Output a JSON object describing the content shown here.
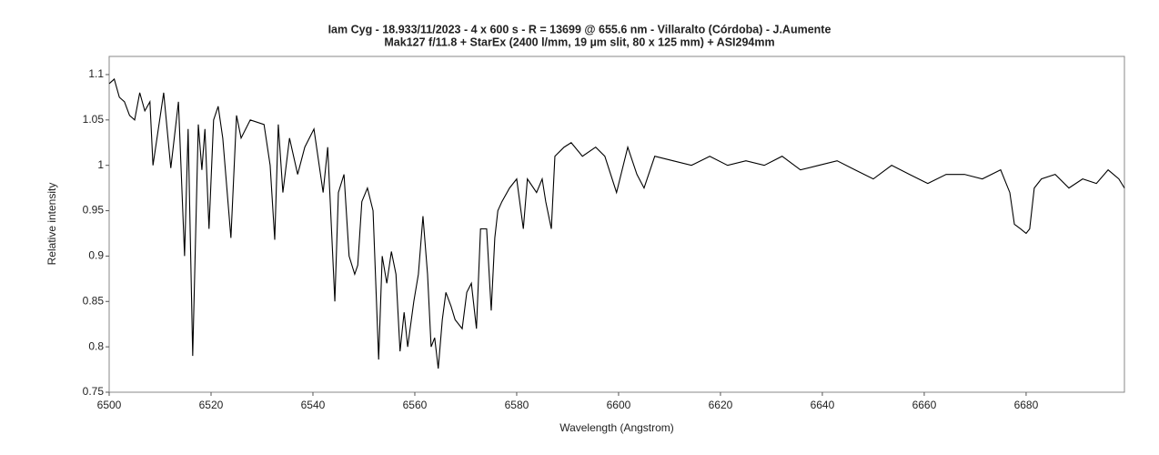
{
  "chart_data": {
    "type": "line",
    "title": "Iam Cyg - 18.933/11/2023 - 4 x 600 s - R = 13699 @ 655.6 nm - Villaralto (Córdoba) - J.Aumente",
    "subtitle": "Mak127 f/11.8 + StarEx (2400 l/mm, 19 µm slit, 80 x 125 mm) + ASI294mm",
    "x_label": "Wavelength (Angstrom)",
    "y_label": "Relative intensity",
    "color": "#000000",
    "x": [
      6500,
      6501,
      6502,
      6503,
      6504,
      6505,
      6506,
      6507,
      6508,
      6508.6,
      6510.7,
      6512.1,
      6513.6,
      6514.8,
      6515.5,
      6516.4,
      6517.5,
      6518.2,
      6518.8,
      6519.6,
      6520.5,
      6521.4,
      6522.3,
      6523.9,
      6525,
      6525.9,
      6527.7,
      6530.4,
      6531.6,
      6532.5,
      6533.2,
      6534.1,
      6535.4,
      6537,
      6538.4,
      6540.2,
      6542,
      6542.9,
      6544.3,
      6545,
      6546.1,
      6547.1,
      6548.2,
      6548.8,
      6549.6,
      6550.7,
      6551.8,
      6552.9,
      6553.6,
      6554.5,
      6555.4,
      6556.3,
      6557.1,
      6557.9,
      6558.6,
      6559.8,
      6560.7,
      6561.6,
      6562.5,
      6563.2,
      6563.9,
      6564.6,
      6565.4,
      6566.1,
      6567.1,
      6567.9,
      6569.3,
      6570.2,
      6571.1,
      6572.1,
      6572.9,
      6574.1,
      6575,
      6575.7,
      6576.3,
      6577.1,
      6578.6,
      6580,
      6581.3,
      6582.1,
      6583.9,
      6585,
      6585.7,
      6586.8,
      6587.5,
      6589.3,
      6590.7,
      6592.9,
      6595.5,
      6597.3,
      6599.6,
      6601.8,
      6603.6,
      6605,
      6607.1,
      6610.7,
      6614.3,
      6617.9,
      6621.4,
      6625,
      6628.6,
      6632.1,
      6635.7,
      6639.3,
      6642.9,
      6646.4,
      6650,
      6653.6,
      6657.1,
      6660.7,
      6664.3,
      6667.9,
      6671.4,
      6675,
      6676.8,
      6677.7,
      6678.9,
      6680,
      6680.7,
      6681.6,
      6683,
      6685.7,
      6688.4,
      6691.1,
      6693.8,
      6696.1,
      6698.2,
      6699.3
    ],
    "values": [
      1.09,
      1.095,
      1.075,
      1.07,
      1.055,
      1.05,
      1.08,
      1.06,
      1.07,
      1.0,
      1.08,
      0.997,
      1.07,
      0.9,
      1.04,
      0.79,
      1.045,
      0.995,
      1.04,
      0.93,
      1.05,
      1.065,
      1.03,
      0.92,
      1.055,
      1.03,
      1.05,
      1.045,
      1.0,
      0.918,
      1.045,
      0.97,
      1.03,
      0.99,
      1.02,
      1.04,
      0.97,
      1.02,
      0.85,
      0.97,
      0.99,
      0.9,
      0.88,
      0.89,
      0.96,
      0.975,
      0.95,
      0.786,
      0.9,
      0.87,
      0.905,
      0.88,
      0.795,
      0.838,
      0.8,
      0.85,
      0.88,
      0.944,
      0.88,
      0.8,
      0.81,
      0.776,
      0.83,
      0.86,
      0.845,
      0.83,
      0.82,
      0.86,
      0.87,
      0.82,
      0.93,
      0.93,
      0.84,
      0.92,
      0.95,
      0.96,
      0.975,
      0.985,
      0.93,
      0.985,
      0.97,
      0.985,
      0.96,
      0.93,
      1.01,
      1.02,
      1.025,
      1.01,
      1.02,
      1.01,
      0.97,
      1.02,
      0.99,
      0.975,
      1.01,
      1.005,
      1.0,
      1.01,
      1.0,
      1.005,
      1.0,
      1.01,
      0.995,
      1.0,
      1.005,
      0.995,
      0.985,
      1.0,
      0.99,
      0.98,
      0.99,
      0.99,
      0.985,
      0.995,
      0.97,
      0.935,
      0.93,
      0.925,
      0.93,
      0.975,
      0.985,
      0.99,
      0.975,
      0.985,
      0.98,
      0.995,
      0.985,
      0.975
    ],
    "xlim": [
      6500,
      6699.3
    ],
    "ylim": [
      0.75,
      1.12
    ],
    "xticks": [
      6500,
      6520,
      6540,
      6560,
      6580,
      6600,
      6620,
      6640,
      6660,
      6680
    ],
    "yticks": [
      0.75,
      0.8,
      0.85,
      0.9,
      0.95,
      1,
      1.05,
      1.1
    ],
    "grid": false
  }
}
